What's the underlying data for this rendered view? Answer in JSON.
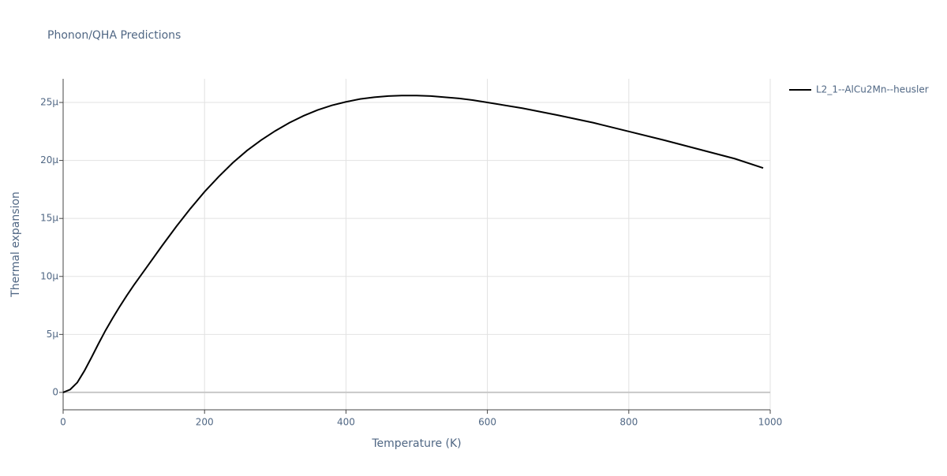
{
  "chart_data": {
    "type": "line",
    "title": "Phonon/QHA Predictions",
    "x_label": "Temperature (K)",
    "y_label": "Thermal expansion",
    "x": [
      0,
      10,
      20,
      30,
      40,
      50,
      60,
      70,
      80,
      90,
      100,
      120,
      140,
      160,
      180,
      200,
      220,
      240,
      260,
      280,
      300,
      320,
      340,
      360,
      380,
      400,
      420,
      440,
      460,
      480,
      500,
      520,
      540,
      560,
      580,
      600,
      650,
      700,
      750,
      800,
      850,
      900,
      950,
      990
    ],
    "series": [
      {
        "name": "L2_1--AlCu2Mn--heusler",
        "color": "#000000",
        "values": [
          0,
          2.5e-07,
          8.5e-07,
          1.85e-06,
          3e-06,
          4.2e-06,
          5.35e-06,
          6.4e-06,
          7.4e-06,
          8.35e-06,
          9.25e-06,
          1.095e-05,
          1.265e-05,
          1.43e-05,
          1.585e-05,
          1.73e-05,
          1.86e-05,
          1.98e-05,
          2.085e-05,
          2.175e-05,
          2.255e-05,
          2.325e-05,
          2.385e-05,
          2.435e-05,
          2.475e-05,
          2.505e-05,
          2.53e-05,
          2.545e-05,
          2.555e-05,
          2.56e-05,
          2.56e-05,
          2.555e-05,
          2.545e-05,
          2.535e-05,
          2.52e-05,
          2.5e-05,
          2.45e-05,
          2.39e-05,
          2.325e-05,
          2.25e-05,
          2.175e-05,
          2.095e-05,
          2.015e-05,
          1.935e-05
        ]
      }
    ],
    "xlim": [
      0,
      1000
    ],
    "xticks": [
      0,
      200,
      400,
      600,
      800,
      1000
    ],
    "ylim": [
      -1.5e-06,
      2.704e-05
    ],
    "yticks": [
      0,
      {
        "value": 5e-06,
        "label": "5μ"
      },
      {
        "value": 1e-05,
        "label": "10μ"
      },
      {
        "value": 1.5e-05,
        "label": "15μ"
      },
      {
        "value": 2e-05,
        "label": "20μ"
      },
      {
        "value": 2.5e-05,
        "label": "25μ"
      }
    ],
    "grid": true,
    "legend": "right"
  }
}
